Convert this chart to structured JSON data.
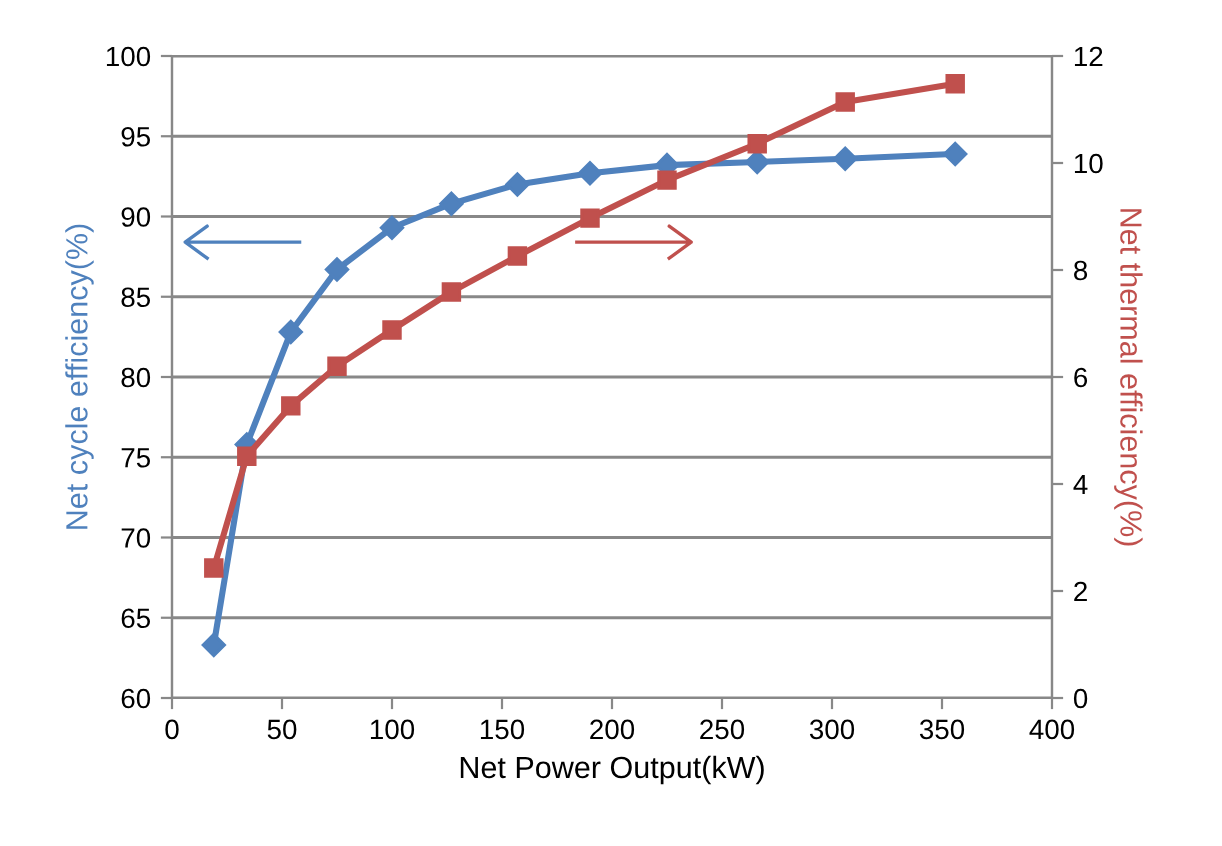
{
  "chart_data": {
    "type": "line",
    "xlabel": "Net Power Output(kW)",
    "ylabel": "Net cycle efficiency(%)",
    "y2label": "Net thermal efficiency(%)",
    "x": [
      19,
      34,
      54,
      75,
      100,
      127,
      157,
      190,
      225,
      266,
      306,
      356
    ],
    "series": [
      {
        "color": "#4f81bd",
        "marker": "diamond",
        "values": [
          63.3,
          75.8,
          82.8,
          86.7,
          89.3,
          90.8,
          92.0,
          92.7,
          93.2,
          93.4,
          93.6,
          93.9
        ]
      },
      {
        "color": "#c0504d",
        "marker": "square",
        "axis": "y2",
        "values": [
          2.43,
          4.52,
          5.46,
          6.2,
          6.88,
          7.59,
          8.26,
          8.97,
          9.68,
          10.36,
          11.14,
          11.48
        ]
      }
    ],
    "xlim": [
      0,
      400
    ],
    "xticks": [
      0,
      50,
      100,
      150,
      200,
      250,
      300,
      350,
      400
    ],
    "ylim": [
      60,
      100
    ],
    "yticks": [
      60,
      65,
      70,
      75,
      80,
      85,
      90,
      95,
      100
    ],
    "y2lim": [
      0,
      12
    ],
    "y2ticks": [
      0,
      2,
      4,
      6,
      8,
      10,
      12
    ],
    "grid": "y"
  }
}
